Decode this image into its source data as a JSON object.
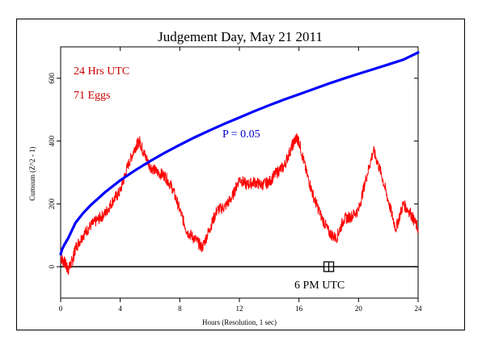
{
  "chart_data": {
    "type": "line",
    "title": "Judgement Day, May 21 2011",
    "xlabel": "Hours (Resolution, 1 sec)",
    "ylabel": "Cumsum (Z^2 - 1)",
    "xlim": [
      0,
      24
    ],
    "ylim": [
      -100,
      700
    ],
    "x_ticks": [
      "0",
      "4",
      "8",
      "12",
      "16",
      "20",
      "24"
    ],
    "y_ticks": [
      "0",
      "200",
      "400",
      "600"
    ],
    "grid": false,
    "annotations": {
      "hours": "24 Hrs UTC",
      "eggs": "71 Eggs",
      "probability": "P = 0.05",
      "marker": "6 PM UTC"
    },
    "marker_hour": 18,
    "colors": {
      "cumsum": "#ff0000",
      "probability_envelope": "#0000ff",
      "annotation_red": "#cc0000",
      "annotation_blue": "#0000cc",
      "axes": "#000000"
    },
    "series": [
      {
        "x": [
          0,
          0.3,
          0.5,
          0.8,
          1,
          1.5,
          2,
          2.5,
          3,
          3.5,
          4,
          4.5,
          5,
          5.3,
          5.6,
          6,
          6.5,
          7,
          7.5,
          8,
          8.5,
          9,
          9.5,
          10,
          10.5,
          11,
          11.5,
          12,
          12.5,
          13,
          13.5,
          14,
          14.5,
          15,
          15.5,
          15.8,
          16,
          16.5,
          17,
          17.5,
          18,
          18.5,
          19,
          19.5,
          20,
          20.5,
          21,
          21.5,
          22,
          22.5,
          23,
          23.5,
          24
        ],
        "values": [
          30,
          10,
          -10,
          20,
          60,
          100,
          130,
          150,
          170,
          210,
          240,
          320,
          380,
          400,
          360,
          320,
          300,
          290,
          250,
          180,
          110,
          90,
          60,
          120,
          180,
          190,
          220,
          280,
          260,
          270,
          260,
          270,
          300,
          320,
          380,
          410,
          400,
          300,
          220,
          160,
          110,
          90,
          150,
          160,
          180,
          280,
          370,
          300,
          210,
          120,
          200,
          170,
          120
        ]
      },
      {
        "name": "P = 0.05",
        "x": [
          0,
          0.1,
          0.25,
          0.5,
          1,
          1.5,
          2,
          3,
          4,
          5,
          6,
          7,
          8,
          9,
          10,
          11,
          12,
          13,
          14,
          15,
          16,
          17,
          18,
          19,
          20,
          21,
          22,
          23,
          24
        ],
        "values": [
          40,
          55,
          70,
          90,
          140,
          170,
          195,
          238,
          275,
          307,
          336,
          363,
          388,
          412,
          434,
          455,
          475,
          495,
          514,
          532,
          549,
          566,
          583,
          599,
          614,
          629,
          644,
          659,
          682
        ]
      }
    ]
  }
}
